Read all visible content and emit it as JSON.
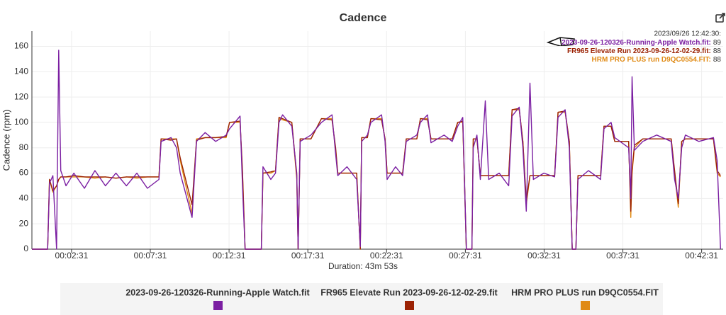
{
  "chart_data": {
    "type": "line",
    "title": "Cadence",
    "ylabel": "Cadence (rpm)",
    "xlabel": "Duration: 43m 53s",
    "x": [
      0,
      60,
      67,
      80,
      94,
      102,
      110,
      130,
      160,
      200,
      240,
      280,
      320,
      360,
      400,
      440,
      484,
      492,
      530,
      551,
      565,
      610,
      627,
      660,
      700,
      740,
      753,
      793,
      802,
      812,
      874,
      880,
      910,
      928,
      941,
      955,
      990,
      1009,
      1014,
      1022,
      1063,
      1103,
      1143,
      1157,
      1165,
      1200,
      1237,
      1251,
      1256,
      1278,
      1291,
      1332,
      1345,
      1353,
      1385,
      1412,
      1426,
      1466,
      1480,
      1507,
      1520,
      1570,
      1601,
      1622,
      1641,
      1655,
      1676,
      1681,
      1695,
      1708,
      1727,
      1740,
      1780,
      1816,
      1829,
      1856,
      1870,
      1883,
      1897,
      1910,
      1950,
      1991,
      2004,
      2031,
      2047,
      2058,
      2072,
      2080,
      2120,
      2166,
      2179,
      2206,
      2220,
      2273,
      2281,
      2286,
      2295,
      2327,
      2380,
      2435,
      2448,
      2462,
      2475,
      2489,
      2540,
      2596,
      2610,
      2623
    ],
    "series": [
      {
        "name": "2023-09-26-120326-Running-Apple Watch.fit",
        "color": "#7b1fa2",
        "values": [
          0,
          0,
          52,
          58,
          0,
          157,
          62,
          50,
          60,
          48,
          62,
          50,
          60,
          50,
          60,
          48,
          55,
          85,
          88,
          80,
          60,
          25,
          85,
          92,
          85,
          90,
          95,
          105,
          50,
          0,
          0,
          65,
          55,
          60,
          100,
          106,
          97,
          60,
          0,
          85,
          90,
          100,
          106,
          75,
          58,
          65,
          55,
          2,
          85,
          90,
          100,
          106,
          85,
          55,
          65,
          58,
          85,
          90,
          100,
          106,
          84,
          90,
          85,
          97,
          104,
          0,
          0,
          80,
          90,
          55,
          117,
          55,
          60,
          50,
          105,
          112,
          80,
          30,
          131,
          55,
          60,
          57,
          104,
          110,
          80,
          0,
          0,
          55,
          62,
          55,
          95,
          100,
          88,
          80,
          40,
          136,
          78,
          85,
          90,
          85,
          55,
          40,
          80,
          90,
          85,
          88,
          70,
          0
        ]
      },
      {
        "name": "FR965 Elevate Run 2023-09-26-12-02-29.fit",
        "color": "#9b2204",
        "values": [
          0,
          0,
          55,
          46,
          50,
          55,
          57,
          57,
          58,
          57,
          57,
          57,
          56,
          57,
          57,
          57,
          57,
          87,
          86,
          87,
          72,
          35,
          86,
          88,
          88,
          89,
          100,
          101,
          62,
          0,
          0,
          60,
          61,
          62,
          104,
          103,
          100,
          58,
          0,
          87,
          87,
          103,
          102,
          80,
          60,
          60,
          60,
          0,
          88,
          88,
          103,
          102,
          87,
          60,
          60,
          60,
          87,
          87,
          103,
          102,
          87,
          87,
          87,
          100,
          101,
          0,
          0,
          87,
          87,
          58,
          58,
          58,
          58,
          58,
          110,
          111,
          85,
          38,
          58,
          58,
          58,
          58,
          108,
          109,
          85,
          0,
          0,
          58,
          58,
          58,
          97,
          97,
          85,
          85,
          30,
          62,
          82,
          87,
          87,
          87,
          62,
          36,
          85,
          87,
          87,
          87,
          62,
          58
        ]
      },
      {
        "name": "HRM PRO PLUS run D9QC0554.FIT",
        "color": "#e08a14",
        "values": [
          0,
          0,
          55,
          45,
          50,
          55,
          57,
          57,
          57,
          57,
          56,
          57,
          56,
          57,
          56,
          57,
          57,
          87,
          87,
          87,
          70,
          28,
          87,
          88,
          88,
          88,
          100,
          100,
          60,
          0,
          0,
          60,
          60,
          62,
          103,
          102,
          100,
          55,
          0,
          87,
          87,
          103,
          103,
          78,
          60,
          60,
          60,
          0,
          88,
          88,
          103,
          103,
          87,
          60,
          60,
          60,
          87,
          87,
          103,
          103,
          87,
          87,
          87,
          100,
          100,
          0,
          0,
          87,
          87,
          58,
          58,
          58,
          58,
          58,
          110,
          110,
          85,
          35,
          58,
          58,
          58,
          58,
          108,
          108,
          85,
          0,
          0,
          58,
          58,
          58,
          97,
          97,
          85,
          85,
          25,
          60,
          80,
          87,
          87,
          87,
          60,
          33,
          85,
          87,
          87,
          87,
          60,
          57
        ]
      }
    ],
    "xlim": [
      0,
      2633
    ],
    "xticks": [
      {
        "value": 151,
        "label": "00:02:31"
      },
      {
        "value": 451,
        "label": "00:07:31"
      },
      {
        "value": 751,
        "label": "00:12:31"
      },
      {
        "value": 1051,
        "label": "00:17:31"
      },
      {
        "value": 1351,
        "label": "00:22:31"
      },
      {
        "value": 1651,
        "label": "00:27:31"
      },
      {
        "value": 1951,
        "label": "00:32:31"
      },
      {
        "value": 2251,
        "label": "00:37:31"
      },
      {
        "value": 2551,
        "label": "00:42:31"
      }
    ],
    "ylim": [
      0,
      172
    ],
    "yticks": [
      0,
      20,
      40,
      60,
      80,
      100,
      120,
      140,
      160
    ],
    "grid": true,
    "tooltip": {
      "time": "2023/09/26 12:42:30:",
      "items": [
        {
          "name": "2023-09-26-120326-Running-Apple Watch.fit:",
          "value": 89
        },
        {
          "name": "FR965 Elevate Run 2023-09-26-12-02-29.fit:",
          "value": 88
        },
        {
          "name": "HRM PRO PLUS run D9QC0554.FIT:",
          "value": 88
        }
      ]
    }
  }
}
